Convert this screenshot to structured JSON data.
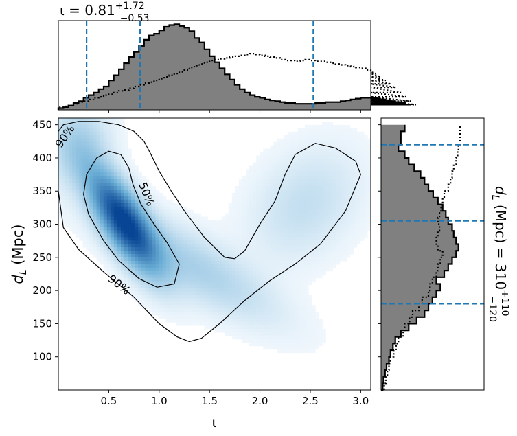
{
  "chart_data": [
    {
      "panel": "joint",
      "type": "heatmap",
      "xlabel": "ι",
      "ylabel": "d_L (Mpc)",
      "xlim": [
        0.0,
        3.1
      ],
      "ylim": [
        50,
        460
      ],
      "x_ticks": [
        0.5,
        1.0,
        1.5,
        2.0,
        2.5,
        3.0
      ],
      "x_tick_labels": [
        "0.5",
        "1.0",
        "1.5",
        "2.0",
        "2.5",
        "3.0"
      ],
      "y_ticks": [
        100,
        150,
        200,
        250,
        300,
        350,
        400,
        450
      ],
      "y_tick_labels": [
        "100",
        "150",
        "200",
        "250",
        "300",
        "350",
        "400",
        "450"
      ],
      "colormap": "Blues",
      "density_blobs": [
        {
          "x": 0.65,
          "y": 305,
          "sx": 0.23,
          "sy": 50,
          "rho": -0.75,
          "weight": 1.0
        },
        {
          "x": 1.3,
          "y": 240,
          "sx": 0.55,
          "sy": 55,
          "rho": -0.8,
          "weight": 0.2
        },
        {
          "x": 2.45,
          "y": 330,
          "sx": 0.35,
          "sy": 55,
          "rho": 0.3,
          "weight": 0.12
        },
        {
          "x": 0.2,
          "y": 420,
          "sx": 0.2,
          "sy": 40,
          "rho": 0.0,
          "weight": 0.2
        }
      ],
      "contours": [
        {
          "label": "50%",
          "points": [
            [
              0.5,
              410
            ],
            [
              0.38,
              400
            ],
            [
              0.28,
              375
            ],
            [
              0.25,
              345
            ],
            [
              0.3,
              315
            ],
            [
              0.45,
              275
            ],
            [
              0.6,
              245
            ],
            [
              0.8,
              218
            ],
            [
              0.98,
              205
            ],
            [
              1.15,
              210
            ],
            [
              1.2,
              240
            ],
            [
              1.08,
              272
            ],
            [
              0.95,
              300
            ],
            [
              0.82,
              330
            ],
            [
              0.74,
              360
            ],
            [
              0.7,
              385
            ],
            [
              0.62,
              405
            ],
            [
              0.5,
              410
            ]
          ],
          "closed": true
        },
        {
          "label": "90%",
          "points": [
            [
              0.0,
              440
            ],
            [
              0.05,
              450
            ],
            [
              0.2,
              455
            ],
            [
              0.4,
              455
            ],
            [
              0.6,
              450
            ],
            [
              0.75,
              440
            ],
            [
              0.85,
              425
            ],
            [
              0.92,
              405
            ],
            [
              1.0,
              380
            ],
            [
              1.12,
              350
            ],
            [
              1.25,
              320
            ],
            [
              1.45,
              280
            ],
            [
              1.65,
              250
            ],
            [
              1.75,
              248
            ],
            [
              1.85,
              260
            ],
            [
              2.0,
              300
            ],
            [
              2.15,
              335
            ],
            [
              2.25,
              375
            ],
            [
              2.35,
              405
            ],
            [
              2.55,
              422
            ],
            [
              2.75,
              415
            ],
            [
              2.95,
              395
            ],
            [
              3.0,
              375
            ],
            [
              2.85,
              320
            ],
            [
              2.6,
              270
            ],
            [
              2.35,
              240
            ],
            [
              2.1,
              215
            ],
            [
              1.85,
              185
            ],
            [
              1.6,
              150
            ],
            [
              1.42,
              128
            ],
            [
              1.3,
              123
            ],
            [
              1.18,
              130
            ],
            [
              1.0,
              150
            ],
            [
              0.75,
              190
            ],
            [
              0.45,
              228
            ],
            [
              0.2,
              262
            ],
            [
              0.05,
              295
            ],
            [
              0.0,
              350
            ]
          ],
          "closed": false
        }
      ],
      "contour_labels": [
        {
          "text": "50%",
          "x": 0.87,
          "y": 345,
          "angle": 68
        },
        {
          "text": "90%",
          "x": 0.6,
          "y": 208,
          "angle": 38
        },
        {
          "text": "90%",
          "x": 0.07,
          "y": 432,
          "angle": -55
        }
      ]
    },
    {
      "panel": "top-marginal",
      "type": "histogram",
      "title": "ι = 0.81",
      "title_sup": "+1.72",
      "title_sub": "−0.53",
      "xlim": [
        0.0,
        3.1
      ],
      "bin_start": 0.0,
      "bin_width": 0.05,
      "filled_values": [
        2,
        3,
        5,
        8,
        10,
        14,
        17,
        20,
        24,
        27,
        34,
        40,
        47,
        54,
        61,
        67,
        74,
        81,
        86,
        88,
        92,
        96,
        98,
        99,
        97,
        95,
        91,
        83,
        78,
        70,
        62,
        55,
        48,
        41,
        35,
        29,
        24,
        20,
        17,
        15,
        14,
        12,
        11,
        10,
        9,
        8,
        8,
        7,
        7,
        7,
        7,
        8,
        8,
        9,
        9,
        9,
        10,
        11,
        12,
        13,
        14,
        14,
        14,
        14,
        13,
        12,
        11,
        10,
        9,
        8,
        6
      ],
      "dotted_values": [
        3,
        4,
        5,
        7,
        9,
        10,
        12,
        14,
        15,
        17,
        18,
        20,
        22,
        23,
        25,
        27,
        29,
        31,
        32,
        34,
        36,
        38,
        40,
        42,
        44,
        46,
        49,
        51,
        53,
        55,
        57,
        58,
        59,
        60,
        61,
        62,
        63,
        64,
        65,
        64,
        63,
        62,
        61,
        60,
        58,
        57,
        57,
        56,
        57,
        58,
        57,
        56,
        56,
        55,
        54,
        53,
        52,
        51,
        50,
        49,
        48,
        46,
        44,
        42,
        38,
        34,
        30,
        26,
        20,
        15,
        10,
        6
      ],
      "medians": [
        0.28,
        0.81,
        2.53
      ],
      "ylim": [
        0,
        100
      ]
    },
    {
      "panel": "right-marginal",
      "type": "histogram",
      "title": "d",
      "title_sub": "L",
      "title_rest": " (Mpc) = 310",
      "title_sup2": "+110",
      "title_sub2": "−120",
      "ylim": [
        50,
        460
      ],
      "bin_start": 50,
      "bin_width": 10,
      "filled_values": [
        2,
        3,
        5,
        7,
        10,
        12,
        15,
        18,
        25,
        35,
        45,
        55,
        60,
        65,
        70,
        75,
        70,
        80,
        85,
        90,
        95,
        98,
        95,
        92,
        90,
        85,
        82,
        78,
        72,
        66,
        60,
        55,
        50,
        42,
        35,
        30,
        22,
        25,
        25,
        30
      ],
      "dotted_values": [
        4,
        6,
        8,
        10,
        12,
        16,
        19,
        22,
        28,
        30,
        36,
        40,
        48,
        52,
        60,
        62,
        65,
        70,
        72,
        75,
        78,
        72,
        70,
        72,
        74,
        72,
        74,
        76,
        78,
        80,
        85,
        88,
        90,
        92,
        95,
        97,
        98,
        100,
        100,
        100
      ],
      "medians": [
        180,
        305,
        420
      ],
      "xlim": [
        0,
        100
      ]
    }
  ]
}
